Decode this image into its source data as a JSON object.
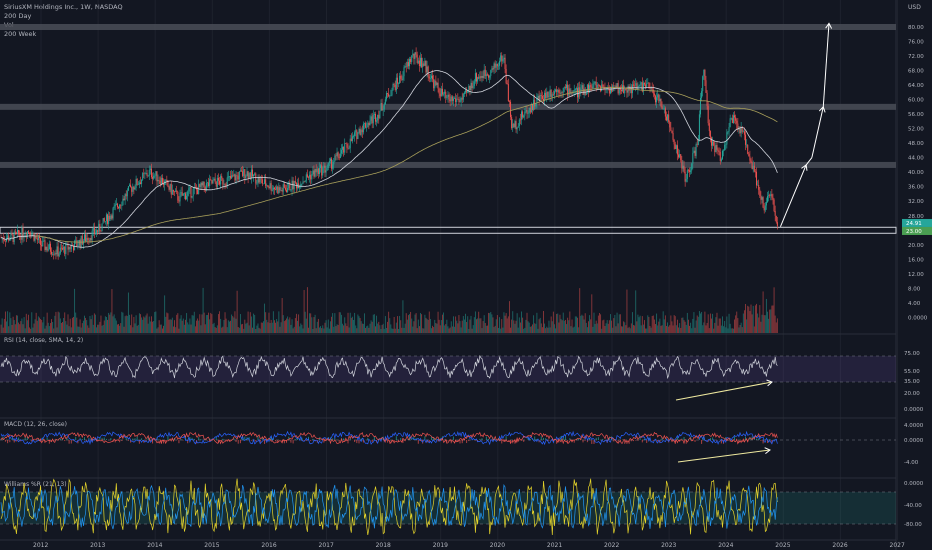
{
  "header": {
    "symbol_line": "SiriusXM Holdings Inc., 1W, NASDAQ",
    "studies": [
      "200 Day",
      "Vol",
      "200 Week"
    ]
  },
  "currency": "USD",
  "price_badges": {
    "last": "24.91",
    "second": "23.00"
  },
  "colors": {
    "up": "#26a69a",
    "down": "#ef5350",
    "ma_short": "#d1d4dc",
    "ma_long": "#a89f5a",
    "arrow": "#ffffff",
    "band": "#4a4d57"
  },
  "chart_data": {
    "type": "candlestick",
    "x_ticks": [
      "2012",
      "2013",
      "2014",
      "2015",
      "2016",
      "2017",
      "2018",
      "2019",
      "2020",
      "2021",
      "2022",
      "2023",
      "2024",
      "2025",
      "2026",
      "2027"
    ],
    "price_axis": {
      "ticks": [
        "80.00",
        "76.00",
        "72.00",
        "68.00",
        "64.00",
        "60.00",
        "56.00",
        "52.00",
        "48.00",
        "44.00",
        "40.00",
        "36.00",
        "32.00",
        "28.00",
        "24.00",
        "20.00",
        "16.00",
        "12.00",
        "8.00",
        "4.00",
        "0.0000"
      ]
    },
    "horizontal_levels": [
      80,
      58,
      42,
      24
    ],
    "price_anchors": [
      [
        2011.5,
        22
      ],
      [
        2011.8,
        24
      ],
      [
        2012.0,
        20
      ],
      [
        2012.3,
        18
      ],
      [
        2012.6,
        20
      ],
      [
        2013.0,
        24
      ],
      [
        2013.3,
        30
      ],
      [
        2013.6,
        36
      ],
      [
        2013.9,
        40
      ],
      [
        2014.1,
        38
      ],
      [
        2014.4,
        33
      ],
      [
        2014.7,
        35
      ],
      [
        2015.0,
        37
      ],
      [
        2015.3,
        38
      ],
      [
        2015.6,
        40
      ],
      [
        2015.9,
        37
      ],
      [
        2016.2,
        35
      ],
      [
        2016.5,
        37
      ],
      [
        2016.8,
        40
      ],
      [
        2017.0,
        41
      ],
      [
        2017.3,
        46
      ],
      [
        2017.6,
        52
      ],
      [
        2017.9,
        56
      ],
      [
        2018.1,
        62
      ],
      [
        2018.3,
        66
      ],
      [
        2018.5,
        72
      ],
      [
        2018.7,
        70
      ],
      [
        2018.9,
        64
      ],
      [
        2019.1,
        60
      ],
      [
        2019.4,
        60
      ],
      [
        2019.6,
        66
      ],
      [
        2019.9,
        68
      ],
      [
        2020.1,
        72
      ],
      [
        2020.25,
        52
      ],
      [
        2020.4,
        55
      ],
      [
        2020.7,
        60
      ],
      [
        2020.9,
        62
      ],
      [
        2021.1,
        63
      ],
      [
        2021.4,
        62
      ],
      [
        2021.7,
        64
      ],
      [
        2022.0,
        63
      ],
      [
        2022.3,
        63
      ],
      [
        2022.6,
        64
      ],
      [
        2022.9,
        58
      ],
      [
        2023.1,
        48
      ],
      [
        2023.3,
        38
      ],
      [
        2023.5,
        48
      ],
      [
        2023.6,
        70
      ],
      [
        2023.7,
        50
      ],
      [
        2023.9,
        44
      ],
      [
        2024.1,
        55
      ],
      [
        2024.3,
        50
      ],
      [
        2024.5,
        40
      ],
      [
        2024.65,
        30
      ],
      [
        2024.8,
        34
      ],
      [
        2024.9,
        24
      ]
    ],
    "projection_arrow": {
      "x": [
        2024.95,
        2025.4,
        2025.5,
        2025.7,
        2025.8
      ],
      "y": [
        25,
        42,
        44,
        58,
        81
      ]
    },
    "panes": [
      {
        "name": "RSI",
        "label": "RSI (14, close, SMA, 14, 2)",
        "ticks": [
          "75.00",
          "55.00",
          "35.00",
          "20.00",
          "0.0000"
        ],
        "band": [
          35,
          75
        ]
      },
      {
        "name": "MACD",
        "label": "MACD (12, 26, close)",
        "ticks": [
          "4.0000",
          "0.0000",
          "-4.00"
        ]
      },
      {
        "name": "Stoch",
        "label": "Williams %R (21, 13)",
        "ticks": [
          "0.0000",
          "-40.00",
          "-80.00"
        ]
      }
    ]
  }
}
